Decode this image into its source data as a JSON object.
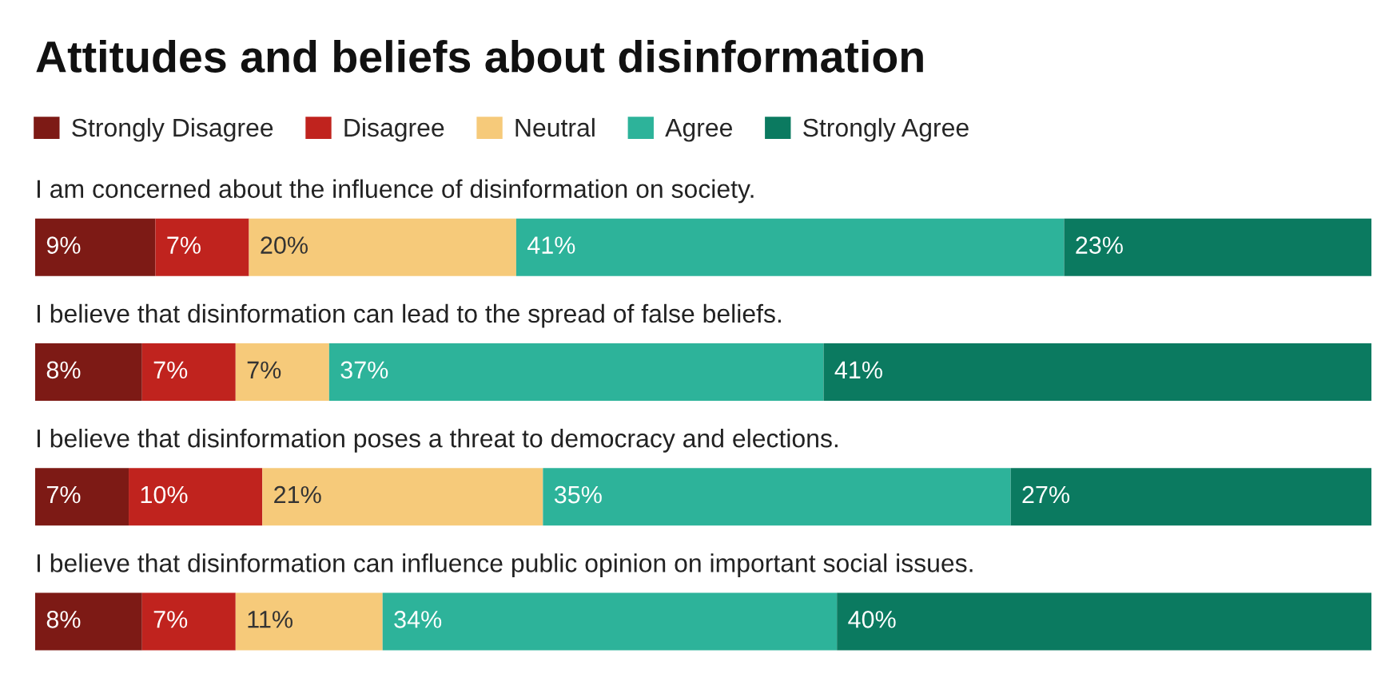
{
  "chart_data": {
    "type": "bar",
    "orientation": "horizontal",
    "stacked": true,
    "title": "Attitudes and beliefs about disinformation",
    "categories": [
      "I am concerned about the influence of disinformation on society.",
      "I believe that disinformation can lead to the spread of false beliefs.",
      "I believe that disinformation poses a threat to democracy and elections.",
      "I believe that disinformation can influence public opinion on important social issues."
    ],
    "series": [
      {
        "name": "Strongly Disagree",
        "color": "#7d1a15",
        "values": [
          9,
          8,
          7,
          8
        ],
        "value_labels": [
          "9%",
          "8%",
          "7%",
          "8%"
        ]
      },
      {
        "name": "Disagree",
        "color": "#c0231e",
        "values": [
          7,
          7,
          10,
          7
        ],
        "value_labels": [
          "7%",
          "7%",
          "10%",
          "7%"
        ]
      },
      {
        "name": "Neutral",
        "color": "#f6ca7a",
        "values": [
          20,
          7,
          21,
          11
        ],
        "value_labels": [
          "20%",
          "7%",
          "21%",
          "11%"
        ]
      },
      {
        "name": "Agree",
        "color": "#2db39a",
        "values": [
          41,
          37,
          35,
          34
        ],
        "value_labels": [
          "41%",
          "37%",
          "35%",
          "34%"
        ]
      },
      {
        "name": "Strongly Agree",
        "color": "#0b7a60",
        "values": [
          23,
          41,
          27,
          40
        ],
        "value_labels": [
          "23%",
          "41%",
          "27%",
          "40%"
        ]
      }
    ],
    "xlim": [
      0,
      100
    ],
    "legend": "top left",
    "tick_labels": false
  }
}
